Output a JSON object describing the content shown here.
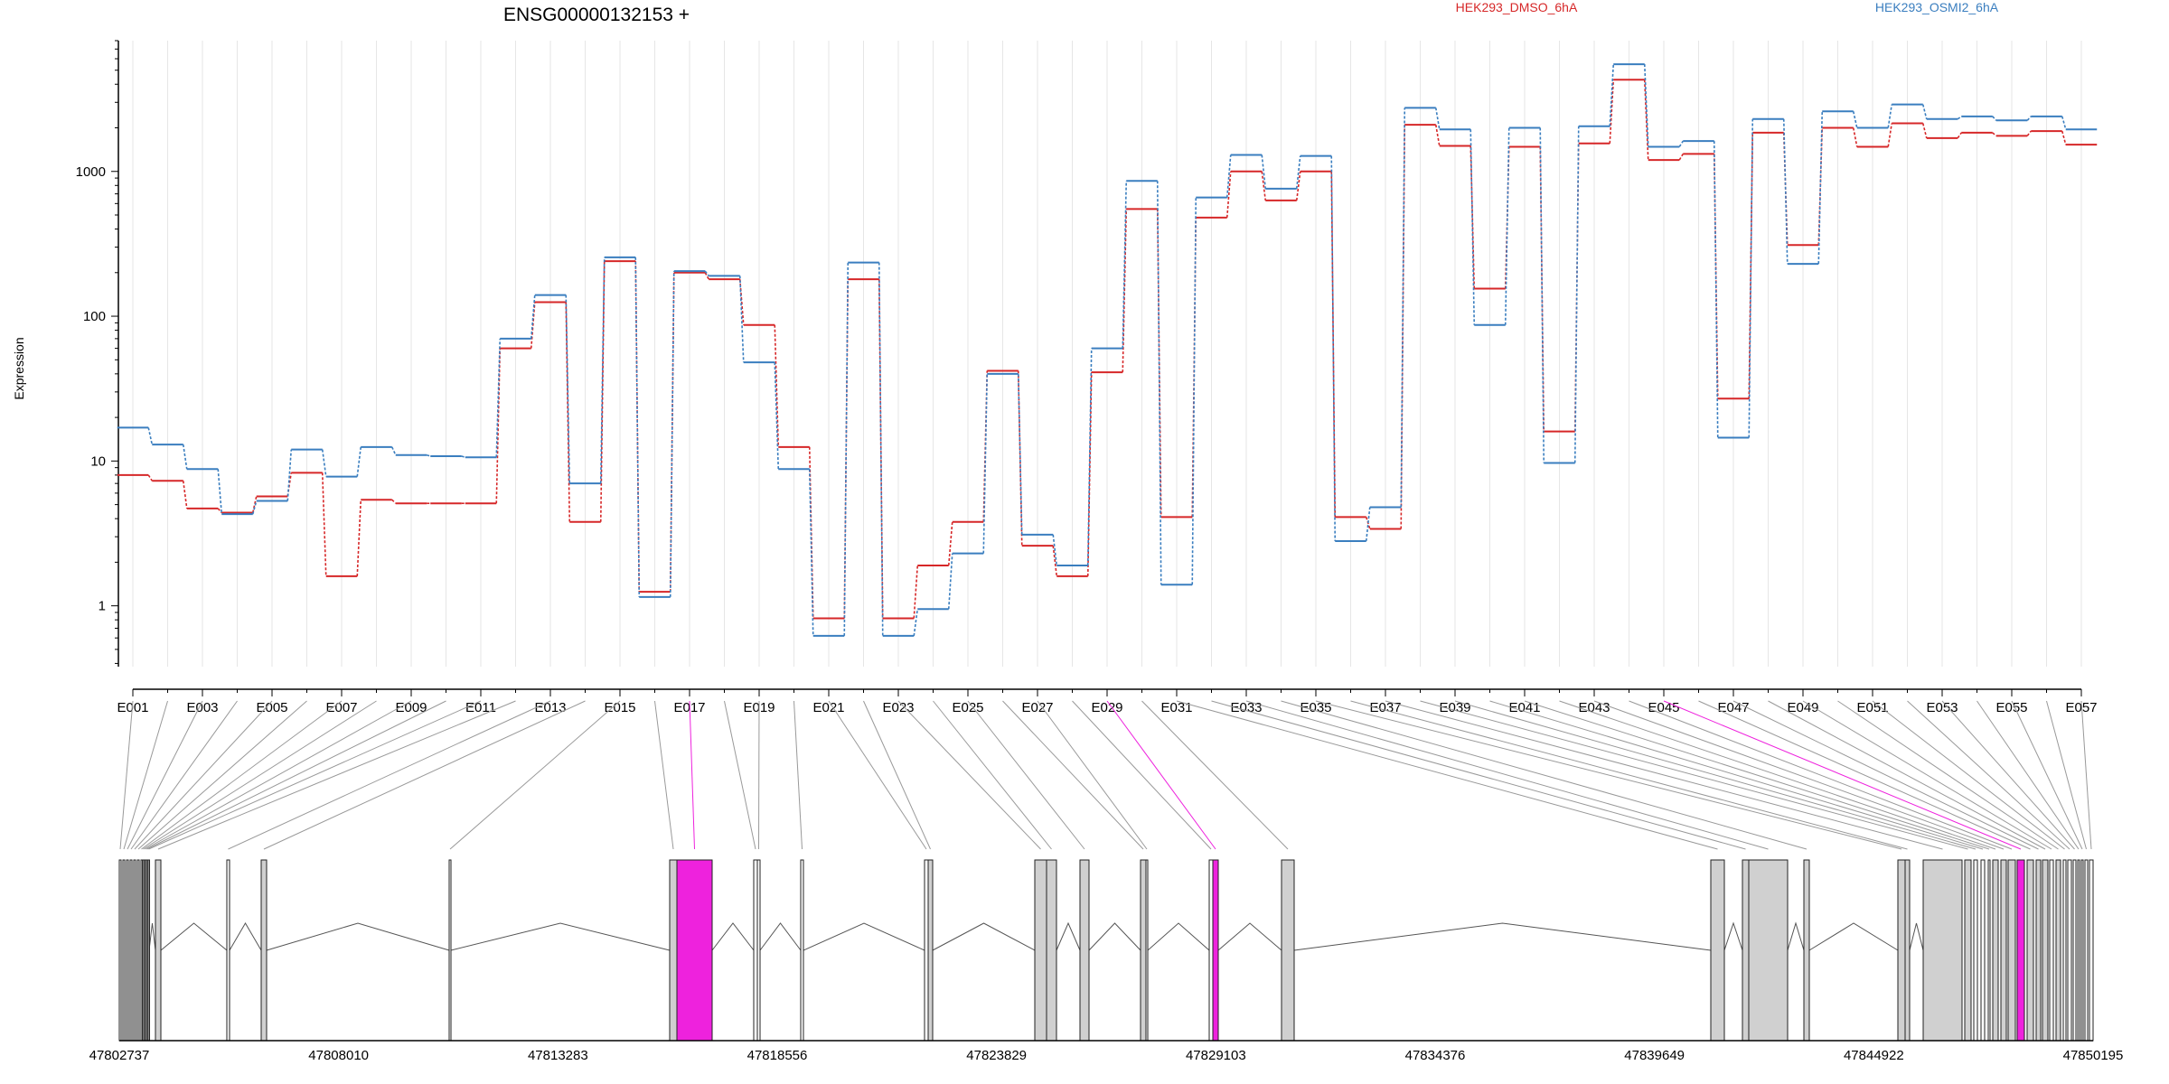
{
  "title": "ENSG00000132153 +",
  "ylabel": "Expression",
  "legend": [
    {
      "name": "HEK293_DMSO_6hA",
      "color": "#d62728"
    },
    {
      "name": "HEK293_OSMI2_6hA",
      "color": "#3a7ebf"
    }
  ],
  "highlight_color": "#ee22dd",
  "chart_data": {
    "type": "line",
    "title": "ENSG00000132153 +",
    "ylabel": "Expression",
    "xlabel": "",
    "y_scale": "log",
    "yticks": [
      1,
      10,
      100,
      1000
    ],
    "ytick_labels": [
      "1",
      "10",
      "100",
      "1000"
    ],
    "ylim": [
      0.38,
      8000
    ],
    "grid": "vertical",
    "legend_position": "top",
    "categories": [
      "E001",
      "E002",
      "E003",
      "E004",
      "E005",
      "E006",
      "E007",
      "E008",
      "E009",
      "E010",
      "E011",
      "E012",
      "E013",
      "E014",
      "E015",
      "E016",
      "E017",
      "E018",
      "E019",
      "E020",
      "E021",
      "E022",
      "E023",
      "E024",
      "E025",
      "E026",
      "E027",
      "E028",
      "E029",
      "E030",
      "E031",
      "E032",
      "E033",
      "E034",
      "E035",
      "E036",
      "E037",
      "E038",
      "E039",
      "E040",
      "E041",
      "E042",
      "E043",
      "E044",
      "E045",
      "E046",
      "E047",
      "E048",
      "E049",
      "E050",
      "E051",
      "E052",
      "E053",
      "E054",
      "E055",
      "E056",
      "E057"
    ],
    "xtick_labels": [
      "E001",
      "E003",
      "E005",
      "E007",
      "E009",
      "E011",
      "E013",
      "E015",
      "E017",
      "E019",
      "E021",
      "E023",
      "E025",
      "E027",
      "E029",
      "E031",
      "E033",
      "E035",
      "E037",
      "E039",
      "E041",
      "E043",
      "E045",
      "E047",
      "E049",
      "E051",
      "E053",
      "E055",
      "E057"
    ],
    "series": [
      {
        "name": "HEK293_DMSO_6hA",
        "color": "#d62728",
        "values": [
          8,
          7.3,
          4.7,
          4.4,
          5.7,
          8.3,
          1.6,
          5.4,
          5.1,
          5.1,
          5.1,
          60,
          125,
          3.8,
          240,
          1.25,
          200,
          180,
          87,
          12.5,
          0.82,
          180,
          0.82,
          1.9,
          3.8,
          42,
          2.6,
          1.6,
          41,
          550,
          4.1,
          480,
          1000,
          630,
          1000,
          4.1,
          3.4,
          2100,
          1500,
          155,
          1480,
          16,
          1560,
          4300,
          1200,
          1320,
          27,
          1850,
          310,
          2000,
          1480,
          2150,
          1700,
          1850,
          1760,
          1900,
          1530
        ]
      },
      {
        "name": "HEK293_OSMI2_6hA",
        "color": "#3a7ebf",
        "values": [
          17,
          13,
          8.8,
          4.3,
          5.3,
          12,
          7.8,
          12.5,
          11,
          10.8,
          10.6,
          70,
          140,
          7,
          255,
          1.15,
          205,
          190,
          48,
          8.8,
          0.62,
          235,
          0.62,
          0.95,
          2.3,
          40,
          3.1,
          1.9,
          60,
          860,
          1.4,
          660,
          1300,
          760,
          1280,
          2.8,
          4.8,
          2750,
          1950,
          87,
          2000,
          9.7,
          2050,
          5500,
          1480,
          1620,
          14.5,
          2300,
          230,
          2600,
          2000,
          2900,
          2300,
          2400,
          2250,
          2400,
          1950
        ]
      }
    ],
    "gene_model": {
      "coordinate_labels": [
        "47802737",
        "47808010",
        "47813283",
        "47818556",
        "47823829",
        "47829103",
        "47834376",
        "47839649",
        "47844922",
        "47850195"
      ],
      "range": [
        47802737,
        47850195
      ],
      "highlighted_exons": [
        "E017",
        "E029",
        "E045"
      ]
    }
  }
}
